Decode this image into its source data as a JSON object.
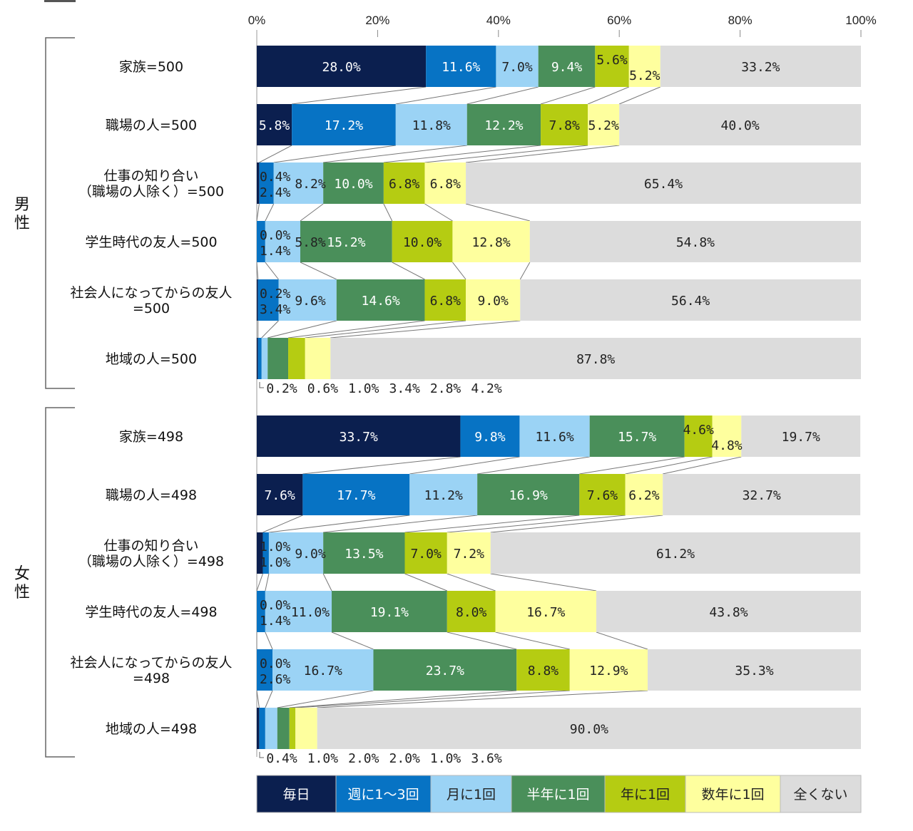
{
  "chart_data": {
    "type": "bar",
    "orientation": "horizontal-stacked-100",
    "xlim": [
      0,
      100
    ],
    "x_ticks": [
      "0%",
      "20%",
      "40%",
      "60%",
      "80%",
      "100%"
    ],
    "legend_placement": "bottom",
    "series": [
      {
        "name": "毎日",
        "color": "#0b1f4f"
      },
      {
        "name": "週に1～3回",
        "color": "#0773c4"
      },
      {
        "name": "月に1回",
        "color": "#9bd3f5"
      },
      {
        "name": "半年に1回",
        "color": "#4a8f5a"
      },
      {
        "name": "年に1回",
        "color": "#b5cc12"
      },
      {
        "name": "数年に1回",
        "color": "#feff9e"
      },
      {
        "name": "全くない",
        "color": "#dcdcdc"
      }
    ],
    "groups": [
      {
        "name": "男性",
        "rows": [
          {
            "label": [
              "家族=500"
            ],
            "values": [
              28.0,
              11.6,
              7.0,
              9.4,
              5.6,
              5.2,
              33.2
            ]
          },
          {
            "label": [
              "職場の人=500"
            ],
            "values": [
              5.8,
              17.2,
              11.8,
              12.2,
              7.8,
              5.2,
              40.0
            ]
          },
          {
            "label": [
              "仕事の知り合い",
              "（職場の人除く）=500"
            ],
            "values": [
              0.4,
              2.4,
              8.2,
              10.0,
              6.8,
              6.8,
              65.4
            ]
          },
          {
            "label": [
              "学生時代の友人=500"
            ],
            "values": [
              0.0,
              1.4,
              5.8,
              15.2,
              10.0,
              12.8,
              54.8
            ]
          },
          {
            "label": [
              "社会人になってからの友人",
              "=500"
            ],
            "values": [
              0.2,
              3.4,
              9.6,
              14.6,
              6.8,
              9.0,
              56.4
            ]
          },
          {
            "label": [
              "地域の人=500"
            ],
            "values": [
              0.2,
              0.6,
              1.0,
              3.4,
              2.8,
              4.2,
              87.8
            ]
          }
        ]
      },
      {
        "name": "女性",
        "rows": [
          {
            "label": [
              "家族=498"
            ],
            "values": [
              33.7,
              9.8,
              11.6,
              15.7,
              4.6,
              4.8,
              19.7
            ]
          },
          {
            "label": [
              "職場の人=498"
            ],
            "values": [
              7.6,
              17.7,
              11.2,
              16.9,
              7.6,
              6.2,
              32.7
            ]
          },
          {
            "label": [
              "仕事の知り合い",
              "（職場の人除く）=498"
            ],
            "values": [
              1.0,
              1.0,
              9.0,
              13.5,
              7.0,
              7.2,
              61.2
            ]
          },
          {
            "label": [
              "学生時代の友人=498"
            ],
            "values": [
              0.0,
              1.4,
              11.0,
              19.1,
              8.0,
              16.7,
              43.8
            ]
          },
          {
            "label": [
              "社会人になってからの友人",
              "=498"
            ],
            "values": [
              0.0,
              2.6,
              16.7,
              23.7,
              8.8,
              12.9,
              35.3
            ]
          },
          {
            "label": [
              "地域の人=498"
            ],
            "values": [
              0.4,
              1.0,
              2.0,
              2.0,
              1.0,
              3.6,
              90.0
            ]
          }
        ]
      }
    ]
  }
}
